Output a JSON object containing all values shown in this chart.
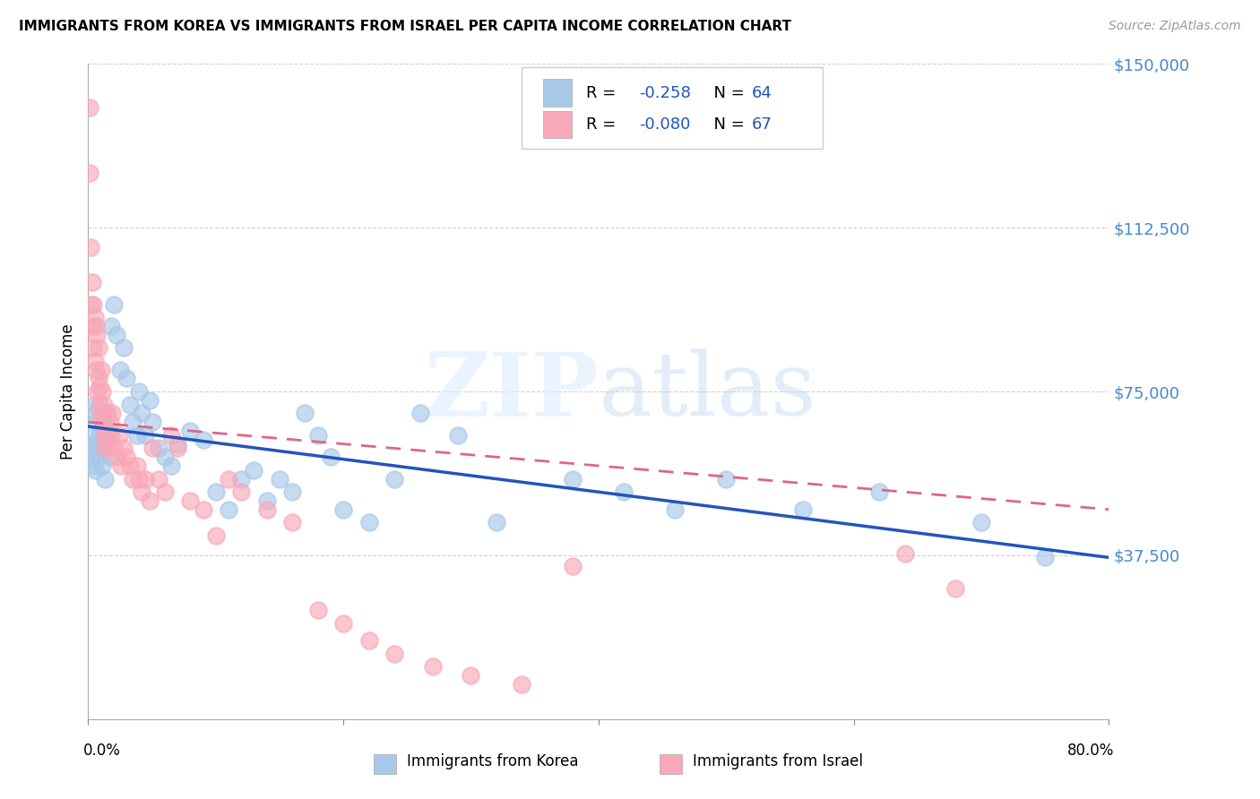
{
  "title": "IMMIGRANTS FROM KOREA VS IMMIGRANTS FROM ISRAEL PER CAPITA INCOME CORRELATION CHART",
  "source": "Source: ZipAtlas.com",
  "ylabel": "Per Capita Income",
  "yticks": [
    0,
    37500,
    75000,
    112500,
    150000
  ],
  "ytick_labels": [
    "",
    "$37,500",
    "$75,000",
    "$112,500",
    "$150,000"
  ],
  "xmin": 0.0,
  "xmax": 0.8,
  "ymin": 0,
  "ymax": 150000,
  "korea_R": "-0.258",
  "korea_N": "64",
  "israel_R": "-0.080",
  "israel_N": "67",
  "korea_color": "#a8c8e8",
  "israel_color": "#f8a8b8",
  "korea_edge_color": "#a8c8e8",
  "israel_edge_color": "#f8a8b8",
  "korea_line_color": "#2255bb",
  "israel_line_color": "#dd6688",
  "korea_trend_x0": 0.0,
  "korea_trend_y0": 67000,
  "korea_trend_x1": 0.8,
  "korea_trend_y1": 37000,
  "israel_trend_x0": 0.0,
  "israel_trend_y0": 68000,
  "israel_trend_x1": 0.8,
  "israel_trend_y1": 48000,
  "watermark_text": "ZIPatlas",
  "korea_x": [
    0.001,
    0.002,
    0.003,
    0.003,
    0.004,
    0.005,
    0.005,
    0.006,
    0.007,
    0.008,
    0.008,
    0.009,
    0.01,
    0.011,
    0.012,
    0.013,
    0.014,
    0.015,
    0.016,
    0.017,
    0.018,
    0.02,
    0.022,
    0.025,
    0.028,
    0.03,
    0.033,
    0.035,
    0.038,
    0.04,
    0.042,
    0.045,
    0.048,
    0.05,
    0.055,
    0.06,
    0.065,
    0.07,
    0.08,
    0.09,
    0.1,
    0.11,
    0.12,
    0.13,
    0.14,
    0.15,
    0.16,
    0.17,
    0.18,
    0.19,
    0.2,
    0.22,
    0.24,
    0.26,
    0.29,
    0.32,
    0.38,
    0.42,
    0.46,
    0.5,
    0.56,
    0.62,
    0.7,
    0.75
  ],
  "korea_y": [
    62000,
    60000,
    58000,
    65000,
    63000,
    57000,
    72000,
    70000,
    68000,
    62000,
    60000,
    65000,
    63000,
    58000,
    67000,
    55000,
    62000,
    70000,
    65000,
    60000,
    90000,
    95000,
    88000,
    80000,
    85000,
    78000,
    72000,
    68000,
    65000,
    75000,
    70000,
    65000,
    73000,
    68000,
    62000,
    60000,
    58000,
    63000,
    66000,
    64000,
    52000,
    48000,
    55000,
    57000,
    50000,
    55000,
    52000,
    70000,
    65000,
    60000,
    48000,
    45000,
    55000,
    70000,
    65000,
    45000,
    55000,
    52000,
    48000,
    55000,
    48000,
    52000,
    45000,
    37000
  ],
  "israel_x": [
    0.001,
    0.001,
    0.002,
    0.002,
    0.003,
    0.003,
    0.004,
    0.004,
    0.005,
    0.005,
    0.006,
    0.006,
    0.007,
    0.007,
    0.008,
    0.008,
    0.009,
    0.009,
    0.01,
    0.01,
    0.011,
    0.011,
    0.012,
    0.012,
    0.013,
    0.013,
    0.014,
    0.015,
    0.016,
    0.017,
    0.018,
    0.019,
    0.02,
    0.022,
    0.024,
    0.026,
    0.028,
    0.03,
    0.033,
    0.035,
    0.038,
    0.04,
    0.042,
    0.045,
    0.048,
    0.05,
    0.055,
    0.06,
    0.065,
    0.07,
    0.08,
    0.09,
    0.1,
    0.11,
    0.12,
    0.14,
    0.16,
    0.18,
    0.2,
    0.22,
    0.24,
    0.27,
    0.3,
    0.34,
    0.38,
    0.64,
    0.68
  ],
  "israel_y": [
    140000,
    125000,
    108000,
    95000,
    100000,
    90000,
    95000,
    85000,
    92000,
    82000,
    90000,
    80000,
    88000,
    75000,
    85000,
    78000,
    76000,
    72000,
    80000,
    70000,
    75000,
    68000,
    72000,
    65000,
    68000,
    62000,
    70000,
    65000,
    62000,
    68000,
    65000,
    70000,
    62000,
    60000,
    65000,
    58000,
    62000,
    60000,
    58000,
    55000,
    58000,
    55000,
    52000,
    55000,
    50000,
    62000,
    55000,
    52000,
    65000,
    62000,
    50000,
    48000,
    42000,
    55000,
    52000,
    48000,
    45000,
    25000,
    22000,
    18000,
    15000,
    12000,
    10000,
    8000,
    35000,
    38000,
    30000
  ]
}
